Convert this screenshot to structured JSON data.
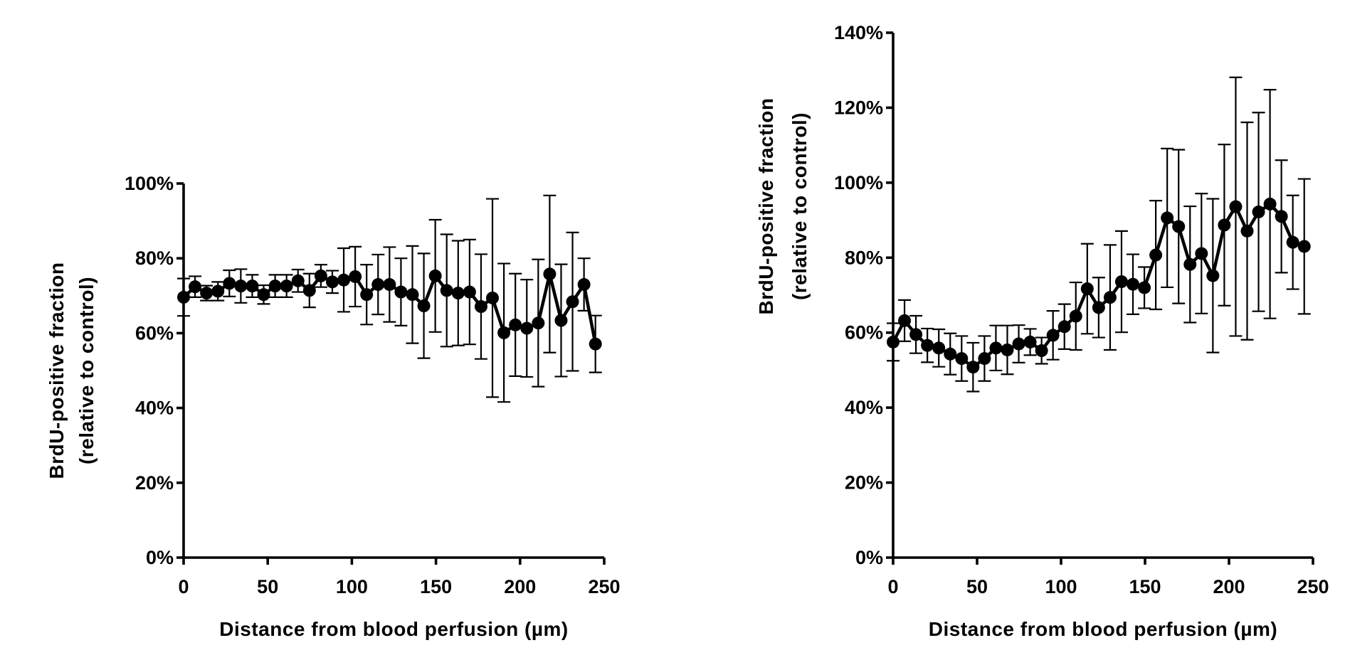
{
  "chart_data": [
    {
      "type": "line",
      "xlabel": "Distance from blood perfusion (µm)",
      "ylabel": [
        "BrdU-positive fraction",
        "(relative to control)"
      ],
      "x": [
        0,
        6.8,
        13.6,
        20.4,
        27.2,
        34,
        40.8,
        47.6,
        54.4,
        61.2,
        68,
        74.8,
        81.6,
        88.4,
        95.2,
        102,
        108.8,
        115.6,
        122.4,
        129.2,
        136,
        142.8,
        149.6,
        156.4,
        163.2,
        170,
        176.8,
        183.6,
        190.4,
        197.2,
        204,
        210.8,
        217.6,
        224.4,
        231.2,
        238,
        244.8
      ],
      "series": [
        {
          "color": "#000000",
          "values": [
            69.6,
            72.4,
            70.7,
            71.2,
            73.3,
            72.6,
            72.6,
            70.3,
            72.6,
            72.6,
            74.0,
            71.4,
            75.3,
            73.7,
            74.2,
            75.1,
            70.3,
            73.0,
            73.0,
            71.0,
            70.3,
            67.3,
            75.3,
            71.4,
            70.7,
            71.0,
            67.1,
            69.4,
            60.1,
            62.2,
            61.3,
            62.7,
            75.8,
            63.4,
            68.4,
            73.0,
            57.1
          ],
          "errors": [
            5.0,
            2.8,
            2.0,
            2.5,
            3.5,
            4.5,
            3.0,
            2.5,
            3.0,
            3.0,
            3.0,
            4.5,
            3.0,
            3.0,
            8.5,
            8.0,
            8.0,
            8.0,
            10.0,
            9.0,
            13.0,
            14.0,
            15.0,
            15.0,
            14.0,
            14.0,
            14.0,
            26.5,
            18.5,
            13.7,
            13.0,
            17.0,
            21.0,
            15.0,
            18.5,
            7.0,
            7.6
          ]
        }
      ],
      "xlim": [
        0,
        250
      ],
      "xticks": [
        0,
        50,
        100,
        150,
        200,
        250
      ],
      "ylim": [
        0,
        100
      ],
      "yticks": [
        {
          "value": 0,
          "label": "0%"
        },
        {
          "value": 20,
          "label": "20%"
        },
        {
          "value": 40,
          "label": "40%"
        },
        {
          "value": 60,
          "label": "60%"
        },
        {
          "value": 80,
          "label": "80%"
        },
        {
          "value": 100,
          "label": "100%"
        }
      ]
    },
    {
      "type": "line",
      "xlabel": "Distance from blood perfusion (µm)",
      "ylabel": [
        "BrdU-positive fraction",
        "(relative to control)"
      ],
      "x": [
        0,
        6.8,
        13.6,
        20.4,
        27.2,
        34,
        40.8,
        47.6,
        54.4,
        61.2,
        68,
        74.8,
        81.6,
        88.4,
        95.2,
        102,
        108.8,
        115.6,
        122.4,
        129.2,
        136,
        142.8,
        149.6,
        156.4,
        163.2,
        170,
        176.8,
        183.6,
        190.4,
        197.2,
        204,
        210.8,
        217.6,
        224.4,
        231.2,
        238,
        244.8
      ],
      "series": [
        {
          "color": "#000000",
          "values": [
            57.5,
            63.2,
            59.5,
            56.6,
            55.9,
            54.3,
            53.1,
            50.8,
            53.1,
            55.9,
            55.4,
            57.0,
            57.5,
            55.2,
            59.3,
            61.6,
            64.4,
            71.7,
            66.7,
            69.4,
            73.6,
            72.9,
            72.0,
            80.7,
            90.6,
            88.3,
            78.2,
            81.1,
            75.2,
            88.7,
            93.6,
            87.1,
            92.2,
            94.3,
            91.0,
            84.1,
            83.0
          ],
          "errors": [
            5.0,
            5.5,
            5.0,
            4.5,
            5.0,
            5.5,
            6.0,
            6.5,
            6.0,
            6.0,
            6.5,
            5.0,
            3.5,
            3.5,
            6.5,
            6.0,
            9.0,
            12.0,
            8.0,
            14.0,
            13.5,
            8.0,
            5.5,
            14.5,
            18.5,
            20.5,
            15.5,
            16.0,
            20.5,
            21.5,
            34.5,
            29.0,
            26.5,
            30.5,
            15.0,
            12.5,
            18.0
          ]
        }
      ],
      "xlim": [
        0,
        250
      ],
      "xticks": [
        0,
        50,
        100,
        150,
        200,
        250
      ],
      "ylim": [
        0,
        140
      ],
      "yticks": [
        {
          "value": 0,
          "label": "0%"
        },
        {
          "value": 20,
          "label": "20%"
        },
        {
          "value": 40,
          "label": "40%"
        },
        {
          "value": 60,
          "label": "60%"
        },
        {
          "value": 80,
          "label": "80%"
        },
        {
          "value": 100,
          "label": "100%"
        },
        {
          "value": 120,
          "label": "120%"
        },
        {
          "value": 140,
          "label": "140%"
        }
      ]
    }
  ]
}
